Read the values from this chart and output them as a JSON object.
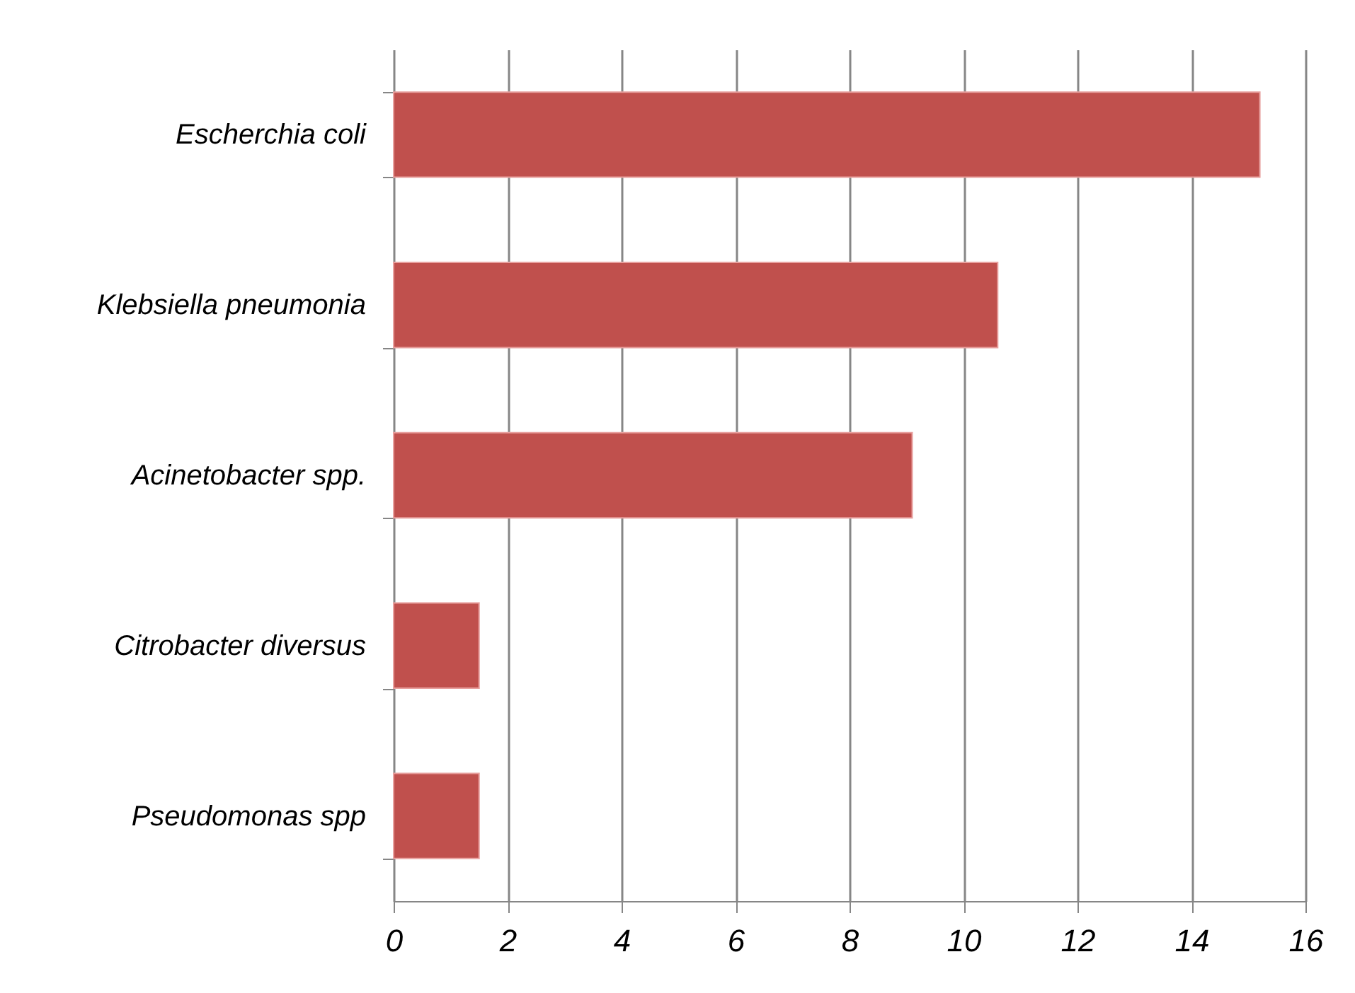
{
  "chart_data": {
    "type": "bar",
    "orientation": "horizontal",
    "categories": [
      "Escherchia coli",
      "Klebsiella pneumonia",
      "Acinetobacter spp.",
      "Citrobacter diversus",
      "Pseudomonas spp"
    ],
    "values": [
      15.2,
      10.6,
      9.1,
      1.5,
      1.5
    ],
    "color": "#c0504d",
    "xlim": [
      0,
      16
    ],
    "xticks": [
      0,
      2,
      4,
      6,
      8,
      10,
      12,
      14,
      16
    ],
    "grid": "x"
  }
}
